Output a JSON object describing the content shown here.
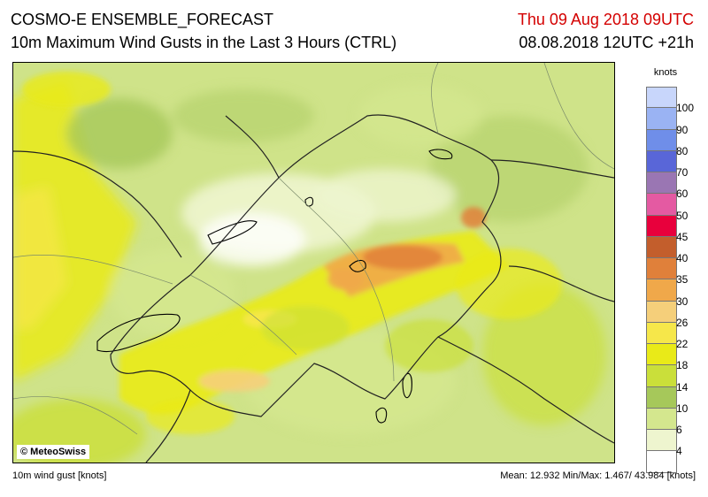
{
  "header": {
    "title": "COSMO-E ENSEMBLE_FORECAST",
    "subtitle": "10m Maximum Wind Gusts in the Last 3 Hours (CTRL)",
    "valid_time": "Thu 09 Aug 2018 09UTC",
    "run_time": "08.08.2018 12UTC +21h"
  },
  "map": {
    "copyright": "© MeteoSwiss"
  },
  "legend": {
    "title": "knots",
    "levels": [
      {
        "label": "100",
        "color": "#c8d6fb"
      },
      {
        "label": "90",
        "color": "#9ab3f3"
      },
      {
        "label": "80",
        "color": "#6f8ee9"
      },
      {
        "label": "70",
        "color": "#5966d8"
      },
      {
        "label": "60",
        "color": "#9a76b3"
      },
      {
        "label": "50",
        "color": "#e45aa2"
      },
      {
        "label": "45",
        "color": "#e8003c"
      },
      {
        "label": "40",
        "color": "#c35e2c"
      },
      {
        "label": "35",
        "color": "#e0803a"
      },
      {
        "label": "30",
        "color": "#f0a84a"
      },
      {
        "label": "26",
        "color": "#f5cf7a"
      },
      {
        "label": "22",
        "color": "#f6e74a"
      },
      {
        "label": "18",
        "color": "#e9ea18"
      },
      {
        "label": "14",
        "color": "#cadf3a"
      },
      {
        "label": "10",
        "color": "#a6c85a"
      },
      {
        "label": "6",
        "color": "#d4e78e"
      },
      {
        "label": "4",
        "color": "#eef5cf"
      },
      {
        "label": "",
        "color": "#ffffff"
      }
    ]
  },
  "footer": {
    "left": "10m wind gust [knots]",
    "right": "Mean:  12.932 Min/Max:   1.467/ 43.984 [knots]"
  }
}
